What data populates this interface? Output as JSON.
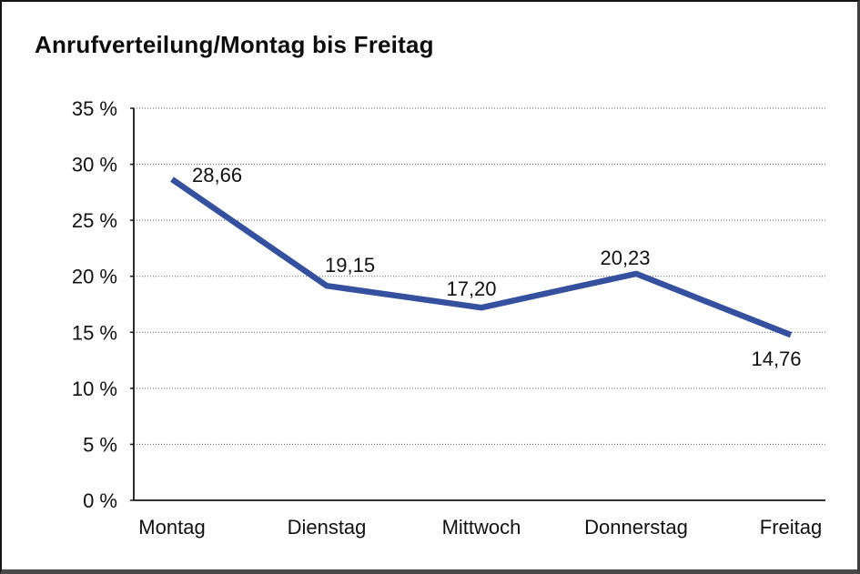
{
  "title": "Anrufverteilung/Montag bis Freitag",
  "chart_data": {
    "type": "line",
    "title": "Anrufverteilung/Montag bis Freitag",
    "categories": [
      "Montag",
      "Dienstag",
      "Mittwoch",
      "Donnerstag",
      "Freitag"
    ],
    "values": [
      28.66,
      19.15,
      17.2,
      20.23,
      14.76
    ],
    "value_labels": [
      "28,66",
      "19,15",
      "17,20",
      "20,23",
      "14,76"
    ],
    "xlabel": "",
    "ylabel": "",
    "ylim": [
      0,
      35
    ],
    "ytick_step": 5,
    "ytick_labels": [
      "0 %",
      "5 %",
      "10 %",
      "15 %",
      "20 %",
      "25 %",
      "30 %",
      "35 %"
    ],
    "grid": "horizontal-dotted",
    "legend": "none",
    "line_color": "#34509E",
    "text_color": "#111111",
    "grid_color": "#5a5a5a",
    "axis_color": "#161616"
  }
}
